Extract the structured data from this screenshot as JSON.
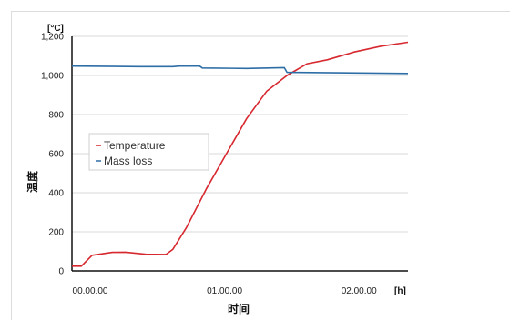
{
  "chart_data": {
    "type": "line",
    "ylabel": "温度",
    "xlabel": "时间",
    "y_unit": "[°C]",
    "x_unit": "[h]",
    "ylim": [
      0,
      1200
    ],
    "xlim": [
      0,
      2.5
    ],
    "y_ticks": [
      {
        "value": 0,
        "label": "0"
      },
      {
        "value": 200,
        "label": "200"
      },
      {
        "value": 400,
        "label": "400"
      },
      {
        "value": 600,
        "label": "600"
      },
      {
        "value": 800,
        "label": "800"
      },
      {
        "value": 1000,
        "label": "1,000"
      },
      {
        "value": 1200,
        "label": "1,200"
      }
    ],
    "x_ticks": [
      {
        "value": 0,
        "label": "00.00.00"
      },
      {
        "value": 1,
        "label": "01.00.00"
      },
      {
        "value": 2,
        "label": "02.00.00"
      }
    ],
    "grid": "horizontal",
    "legend_position": "center-left",
    "series": [
      {
        "name": "Temperature",
        "color": "#d7282f",
        "points": [
          [
            0,
            24
          ],
          [
            0.07,
            24
          ],
          [
            0.15,
            80
          ],
          [
            0.3,
            95
          ],
          [
            0.4,
            96
          ],
          [
            0.55,
            85
          ],
          [
            0.7,
            84
          ],
          [
            0.75,
            110
          ],
          [
            0.85,
            220
          ],
          [
            1.0,
            420
          ],
          [
            1.15,
            600
          ],
          [
            1.3,
            780
          ],
          [
            1.45,
            920
          ],
          [
            1.6,
            1000
          ],
          [
            1.75,
            1060
          ],
          [
            1.9,
            1080
          ],
          [
            2.1,
            1120
          ],
          [
            2.3,
            1150
          ],
          [
            2.5,
            1170
          ]
        ]
      },
      {
        "name": "Mass loss",
        "color": "#2e6ea6",
        "points": [
          [
            0,
            1048
          ],
          [
            0.5,
            1045
          ],
          [
            0.75,
            1045
          ],
          [
            0.8,
            1048
          ],
          [
            0.95,
            1048
          ],
          [
            0.97,
            1038
          ],
          [
            1.3,
            1036
          ],
          [
            1.58,
            1040
          ],
          [
            1.6,
            1016
          ],
          [
            2.5,
            1010
          ]
        ]
      }
    ]
  }
}
